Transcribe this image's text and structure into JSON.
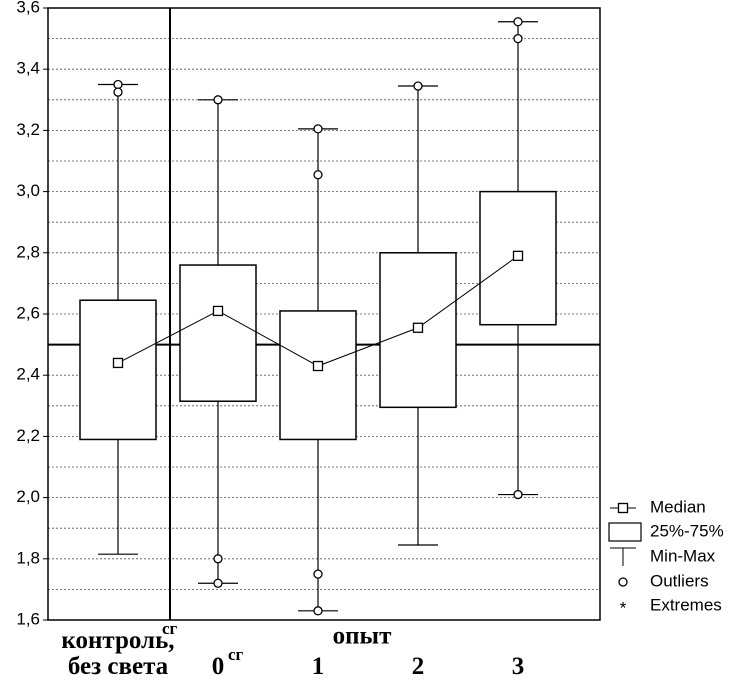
{
  "chart_data": {
    "type": "box",
    "categories": [
      "контроль,\nбез света",
      "0",
      "1",
      "2",
      "3"
    ],
    "category_superscripts": [
      "сг",
      "сг",
      null,
      null,
      null
    ],
    "group_label": "опыт",
    "boxes": [
      {
        "min": 1.815,
        "q1": 2.19,
        "median": 2.44,
        "q3": 2.645,
        "max": 3.35,
        "outliers": [
          3.35,
          3.325
        ]
      },
      {
        "min": 1.72,
        "q1": 2.315,
        "median": 2.61,
        "q3": 2.76,
        "max": 3.3,
        "outliers": [
          3.3,
          1.8,
          1.72
        ]
      },
      {
        "min": 1.63,
        "q1": 2.19,
        "median": 2.43,
        "q3": 2.61,
        "max": 3.205,
        "outliers": [
          3.205,
          3.055,
          1.75,
          1.63
        ]
      },
      {
        "min": 1.845,
        "q1": 2.295,
        "median": 2.555,
        "q3": 2.8,
        "max": 3.345,
        "outliers": [
          3.345
        ]
      },
      {
        "min": 2.01,
        "q1": 2.565,
        "median": 2.79,
        "q3": 3.0,
        "max": 3.555,
        "outliers": [
          3.555,
          3.5,
          2.01
        ]
      }
    ],
    "reference_line": 2.5,
    "ylim": [
      1.6,
      3.6
    ],
    "yticks": [
      {
        "value": 1.6,
        "label": "1,6"
      },
      {
        "value": 1.8,
        "label": "1,8"
      },
      {
        "value": 2.0,
        "label": "2,0"
      },
      {
        "value": 2.2,
        "label": "2,2"
      },
      {
        "value": 2.4,
        "label": "2,4"
      },
      {
        "value": 2.6,
        "label": "2,6"
      },
      {
        "value": 2.8,
        "label": "2,8"
      },
      {
        "value": 3.0,
        "label": "3,0"
      },
      {
        "value": 3.2,
        "label": "3,2"
      },
      {
        "value": 3.4,
        "label": "3,4"
      },
      {
        "value": 3.6,
        "label": "3,6"
      }
    ],
    "minor_yticks": [
      1.7,
      1.9,
      2.1,
      2.3,
      2.5,
      2.7,
      2.9,
      3.1,
      3.3,
      3.5
    ],
    "grid": true,
    "legend": [
      "Median",
      "25%-75%",
      "Min-Max",
      "Outliers",
      "Extremes"
    ]
  }
}
